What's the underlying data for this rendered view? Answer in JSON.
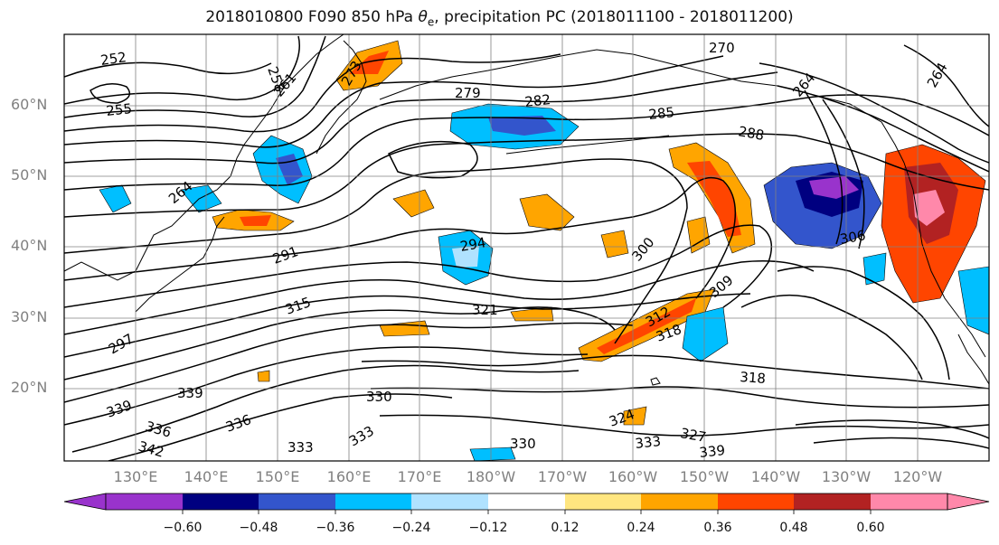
{
  "title": {
    "prefix": "2018010800 F090 850 hPa ",
    "symbol": "θ",
    "subscript": "e",
    "suffix": ", precipitation PC (2018011100 - 2018011200)"
  },
  "map": {
    "region": "North Pacific",
    "projection": "equirectangular",
    "lon_range": [
      122,
      248
    ],
    "lat_range": [
      12,
      72
    ],
    "coastline_color": "#000000",
    "grid_color": "#808080"
  },
  "lat_labels": [
    "60°N",
    "50°N",
    "40°N",
    "30°N",
    "20°N"
  ],
  "lon_labels": [
    "130°E",
    "140°E",
    "150°E",
    "160°E",
    "170°E",
    "180°W",
    "170°W",
    "160°W",
    "150°W",
    "140°W",
    "130°W",
    "120°W"
  ],
  "contour_labels": [
    "252",
    "255",
    "258",
    "261",
    "264",
    "264",
    "264",
    "270",
    "273",
    "279",
    "282",
    "285",
    "288",
    "291",
    "294",
    "300",
    "306",
    "309",
    "312",
    "315",
    "318",
    "318",
    "321",
    "324",
    "327",
    "330",
    "330",
    "333",
    "333",
    "333",
    "336",
    "336",
    "339",
    "339",
    "339",
    "342",
    "297"
  ],
  "colorbar": {
    "colors": [
      "#9933cc",
      "#000080",
      "#3355cc",
      "#00bfff",
      "#b0e2ff",
      "#ffffff",
      "#ffe680",
      "#ffa500",
      "#ff4500",
      "#b22222",
      "#ff88aa"
    ],
    "ticks": [
      "−0.60",
      "−0.48",
      "−0.36",
      "−0.24",
      "−0.12",
      "0.12",
      "0.24",
      "0.36",
      "0.48",
      "0.60"
    ],
    "extend": "both"
  }
}
